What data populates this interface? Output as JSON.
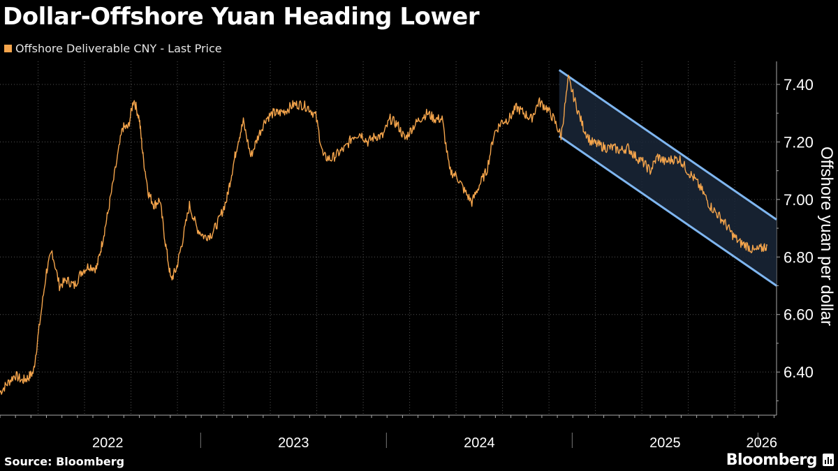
{
  "title": "Dollar-Offshore Yuan Heading Lower",
  "source": "Source: Bloomberg",
  "brand": "Bloomberg",
  "chart_data": {
    "type": "line",
    "title": "Dollar-Offshore Yuan Heading Lower",
    "ylabel": "Offshore yuan per dollar",
    "xlabel": "",
    "ylim": [
      6.25,
      7.48
    ],
    "yticks": [
      6.4,
      6.6,
      6.8,
      7.0,
      7.2,
      7.4
    ],
    "ytick_labels": [
      "6.40",
      "6.60",
      "6.80",
      "7.00",
      "7.20",
      "7.40"
    ],
    "xlim": [
      2021.92,
      2026.1
    ],
    "year_labels": [
      {
        "label": "2022",
        "at": 2022.5
      },
      {
        "label": "2023",
        "at": 2023.5
      },
      {
        "label": "2024",
        "at": 2024.5
      },
      {
        "label": "2025",
        "at": 2025.5
      },
      {
        "label": "2026",
        "at": 2026.02
      }
    ],
    "year_boundaries": [
      2023.0,
      2024.0,
      2025.0,
      2026.0
    ],
    "legend": [
      {
        "name": "Offshore Deliverable CNY - Last Price",
        "color": "#f5a54c"
      }
    ],
    "series": [
      {
        "name": "Offshore Deliverable CNY - Last Price",
        "color": "#f5a54c",
        "x": [
          2021.92,
          2021.96,
          2022.0,
          2022.04,
          2022.07,
          2022.1,
          2022.13,
          2022.17,
          2022.2,
          2022.24,
          2022.28,
          2022.32,
          2022.36,
          2022.4,
          2022.44,
          2022.47,
          2022.5,
          2022.54,
          2022.58,
          2022.61,
          2022.64,
          2022.67,
          2022.69,
          2022.72,
          2022.75,
          2022.78,
          2022.81,
          2022.84,
          2022.87,
          2022.9,
          2022.94,
          2022.98,
          2023.02,
          2023.06,
          2023.1,
          2023.14,
          2023.17,
          2023.2,
          2023.23,
          2023.27,
          2023.31,
          2023.35,
          2023.39,
          2023.42,
          2023.46,
          2023.5,
          2023.54,
          2023.58,
          2023.62,
          2023.66,
          2023.7,
          2023.74,
          2023.78,
          2023.82,
          2023.86,
          2023.9,
          2023.94,
          2023.98,
          2024.02,
          2024.06,
          2024.1,
          2024.14,
          2024.18,
          2024.22,
          2024.26,
          2024.3,
          2024.34,
          2024.38,
          2024.42,
          2024.46,
          2024.5,
          2024.54,
          2024.58,
          2024.62,
          2024.66,
          2024.7,
          2024.74,
          2024.78,
          2024.82,
          2024.86,
          2024.9,
          2024.94,
          2024.98,
          2025.02,
          2025.06,
          2025.1,
          2025.14,
          2025.18,
          2025.22,
          2025.26,
          2025.3,
          2025.34,
          2025.38,
          2025.42,
          2025.46,
          2025.5,
          2025.54,
          2025.58,
          2025.62,
          2025.66,
          2025.7,
          2025.74,
          2025.78,
          2025.82,
          2025.86,
          2025.9,
          2025.94,
          2025.98,
          2026.02,
          2026.05
        ],
        "values": [
          6.33,
          6.36,
          6.39,
          6.37,
          6.38,
          6.4,
          6.55,
          6.75,
          6.82,
          6.7,
          6.72,
          6.7,
          6.75,
          6.77,
          6.76,
          6.85,
          6.95,
          7.1,
          7.25,
          7.25,
          7.35,
          7.28,
          7.15,
          7.02,
          6.98,
          7.0,
          6.85,
          6.72,
          6.76,
          6.85,
          6.98,
          6.9,
          6.87,
          6.88,
          6.93,
          7.0,
          7.1,
          7.2,
          7.27,
          7.15,
          7.22,
          7.28,
          7.3,
          7.3,
          7.31,
          7.33,
          7.33,
          7.32,
          7.29,
          7.15,
          7.14,
          7.16,
          7.18,
          7.22,
          7.23,
          7.2,
          7.22,
          7.22,
          7.28,
          7.26,
          7.21,
          7.25,
          7.28,
          7.3,
          7.28,
          7.28,
          7.1,
          7.08,
          7.03,
          6.99,
          7.05,
          7.1,
          7.23,
          7.27,
          7.28,
          7.32,
          7.3,
          7.28,
          7.34,
          7.32,
          7.28,
          7.22,
          7.42,
          7.33,
          7.25,
          7.2,
          7.19,
          7.18,
          7.18,
          7.17,
          7.18,
          7.15,
          7.13,
          7.1,
          7.15,
          7.13,
          7.14,
          7.14,
          7.1,
          7.07,
          7.03,
          6.98,
          6.95,
          6.92,
          6.88,
          6.85,
          6.84,
          6.82,
          6.83,
          6.84
        ]
      }
    ],
    "annotation": {
      "type": "downtrend channel",
      "start_x": 2024.93,
      "end_x": 2026.1,
      "upper_start": 7.45,
      "upper_end": 6.93,
      "lower_start": 7.22,
      "lower_end": 6.7
    }
  },
  "colors": {
    "background": "#000000",
    "line": "#f5a54c",
    "channel_edge": "#7fb6f0",
    "channel_fill": "#1a2738",
    "grid": "#555555",
    "axis_text": "#ffffff"
  }
}
